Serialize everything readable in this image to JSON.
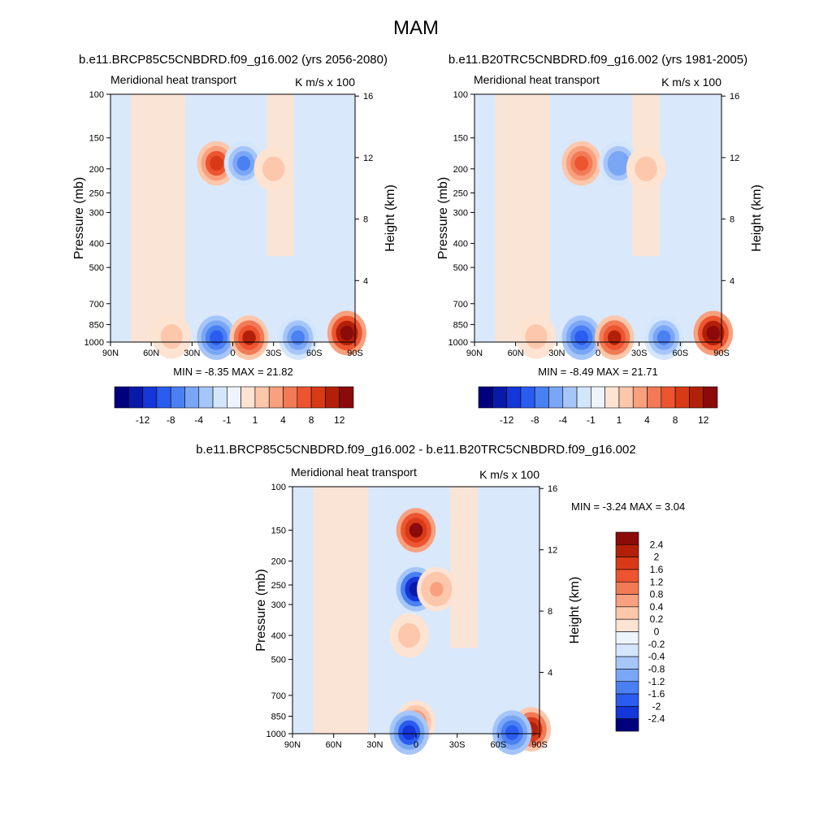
{
  "figure_title": "MAM",
  "palette": {
    "blues": [
      "#00007f",
      "#0a1aa8",
      "#1536d8",
      "#2a5cf0",
      "#4a80f2",
      "#7aa6f6",
      "#a6c6fa",
      "#d4e6fc"
    ],
    "neutral": "#eef4fc",
    "reds": [
      "#fde3d2",
      "#fcc7ab",
      "#f9a07e",
      "#f27a56",
      "#ec5530",
      "#d83a18",
      "#b3200a",
      "#8b0a0a"
    ],
    "panel_fill": "#d9e8fb",
    "warm_fill": "#fde3d2"
  },
  "chart_data": [
    {
      "type": "heatmap",
      "title": "b.e11.BRCP85C5CNBDRD.f09_g16.002 (yrs 2056-2080)",
      "left_label": "Meridional heat transport",
      "units_label": "K m/s x 100",
      "xlabel": "",
      "ylabel": "Pressure (mb)",
      "y2label": "Height (km)",
      "x_ticks": [
        "90N",
        "60N",
        "30N",
        "0",
        "30S",
        "60S",
        "90S"
      ],
      "x_range": [
        90,
        -90
      ],
      "y_ticks": [
        100,
        150,
        200,
        250,
        300,
        400,
        500,
        700,
        850,
        1000
      ],
      "y_range": [
        100,
        1000
      ],
      "y_scale": "log",
      "height_ticks": [
        16,
        12,
        8,
        4
      ],
      "stats": "MIN = -8.35  MAX = 21.82",
      "colorbar_labels": [
        "-12",
        "-8",
        "-4",
        "-1",
        "1",
        "4",
        "8",
        "12"
      ],
      "features": [
        {
          "lat": 12,
          "p": 190,
          "value": 10
        },
        {
          "lat": -8,
          "p": 190,
          "value": -6
        },
        {
          "lat": -30,
          "p": 200,
          "value": 3
        },
        {
          "lat": 12,
          "p": 960,
          "value": -8
        },
        {
          "lat": -12,
          "p": 960,
          "value": 12
        },
        {
          "lat": -48,
          "p": 960,
          "value": -6
        },
        {
          "lat": -84,
          "p": 920,
          "value": 15
        },
        {
          "lat": 45,
          "p": 950,
          "value": 3
        }
      ]
    },
    {
      "type": "heatmap",
      "title": "b.e11.B20TRC5CNBDRD.f09_g16.002 (yrs 1981-2005)",
      "left_label": "Meridional heat transport",
      "units_label": "K m/s x 100",
      "xlabel": "",
      "ylabel": "Pressure (mb)",
      "y2label": "Height (km)",
      "x_ticks": [
        "90N",
        "60N",
        "30N",
        "0",
        "30S",
        "60S",
        "90S"
      ],
      "x_range": [
        90,
        -90
      ],
      "y_ticks": [
        100,
        150,
        200,
        250,
        300,
        400,
        500,
        700,
        850,
        1000
      ],
      "y_range": [
        100,
        1000
      ],
      "y_scale": "log",
      "height_ticks": [
        16,
        12,
        8,
        4
      ],
      "stats": "MIN = -8.49  MAX = 21.71",
      "colorbar_labels": [
        "-12",
        "-8",
        "-4",
        "-1",
        "1",
        "4",
        "8",
        "12"
      ],
      "features": [
        {
          "lat": 12,
          "p": 190,
          "value": 8
        },
        {
          "lat": -15,
          "p": 190,
          "value": -5
        },
        {
          "lat": -35,
          "p": 200,
          "value": 3
        },
        {
          "lat": 12,
          "p": 960,
          "value": -8
        },
        {
          "lat": -12,
          "p": 960,
          "value": 12
        },
        {
          "lat": -48,
          "p": 960,
          "value": -6
        },
        {
          "lat": -84,
          "p": 920,
          "value": 15
        },
        {
          "lat": 45,
          "p": 950,
          "value": 3
        }
      ]
    },
    {
      "type": "heatmap",
      "title": "b.e11.BRCP85C5CNBDRD.f09_g16.002 - b.e11.B20TRC5CNBDRD.f09_g16.002",
      "left_label": "Meridional heat transport",
      "units_label": "K m/s x 100",
      "xlabel": "",
      "ylabel": "Pressure (mb)",
      "y2label": "Height (km)",
      "x_ticks": [
        "90N",
        "60N",
        "30N",
        "0",
        "30S",
        "60S",
        "90S"
      ],
      "x_range": [
        90,
        -90
      ],
      "y_ticks": [
        100,
        150,
        200,
        250,
        300,
        400,
        500,
        700,
        850,
        1000
      ],
      "y_range": [
        100,
        1000
      ],
      "y_scale": "log",
      "height_ticks": [
        16,
        12,
        8,
        4
      ],
      "stats": "MIN = -3.24  MAX =  3.04",
      "colorbar_labels": [
        "2.4",
        "2",
        "1.6",
        "1.2",
        "0.8",
        "0.4",
        "0.2",
        "0",
        "-0.2",
        "-0.4",
        "-0.8",
        "-1.2",
        "-1.6",
        "-2",
        "-2.4"
      ],
      "features": [
        {
          "lat": 0,
          "p": 150,
          "value": 2.8
        },
        {
          "lat": 0,
          "p": 260,
          "value": -2.4
        },
        {
          "lat": -15,
          "p": 260,
          "value": 0.8
        },
        {
          "lat": 5,
          "p": 400,
          "value": 0.6
        },
        {
          "lat": 0,
          "p": 900,
          "value": 1.2
        },
        {
          "lat": 5,
          "p": 990,
          "value": -2.0
        },
        {
          "lat": -84,
          "p": 960,
          "value": 2.4
        },
        {
          "lat": -70,
          "p": 990,
          "value": -1.6
        }
      ]
    }
  ]
}
